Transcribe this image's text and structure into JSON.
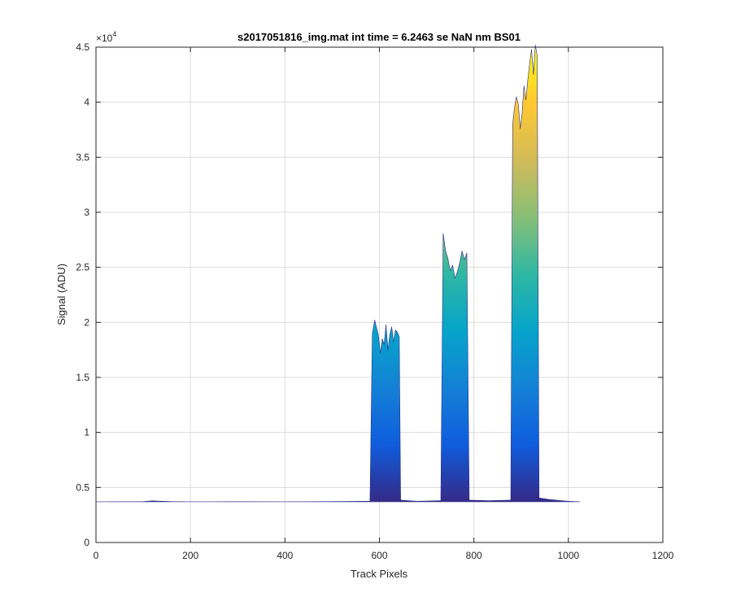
{
  "chart_data": {
    "type": "area",
    "title": "s2017051816_img.mat int time = 6.2463 se  NaN nm BS01",
    "xlabel": "Track Pixels",
    "ylabel": "Signal (ADU)",
    "xlim": [
      0,
      1200
    ],
    "ylim": [
      0,
      45000
    ],
    "xticks": [
      0,
      200,
      400,
      600,
      800,
      1000,
      1200
    ],
    "xtick_labels": [
      "0",
      "200",
      "400",
      "600",
      "800",
      "1000",
      "1200"
    ],
    "yticks": [
      0,
      5000,
      10000,
      15000,
      20000,
      25000,
      30000,
      35000,
      40000,
      45000
    ],
    "ytick_labels": [
      "0",
      "0.5",
      "1",
      "1.5",
      "2",
      "2.5",
      "3",
      "3.5",
      "4",
      "4.5"
    ],
    "y_exponent_label": "×10",
    "y_exponent_power": "4",
    "grid": true,
    "colormap": [
      "#352a87",
      "#0f5cdd",
      "#1481d6",
      "#06a4ca",
      "#2eb7a4",
      "#87bf77",
      "#d1bb59",
      "#fec832",
      "#f9fb0e"
    ],
    "baseline": 3700,
    "series": [
      {
        "x": [
          0,
          100,
          120,
          140,
          160,
          200,
          300,
          400,
          500,
          580
        ],
        "y": [
          3700,
          3720,
          3780,
          3750,
          3720,
          3700,
          3710,
          3700,
          3720,
          3750
        ]
      },
      {
        "x": [
          580,
          585,
          590,
          594,
          598,
          602,
          606,
          610,
          614,
          618,
          622,
          626,
          630,
          634,
          638,
          642,
          645
        ],
        "y": [
          3800,
          19000,
          20200,
          19500,
          18800,
          17200,
          18500,
          18000,
          19800,
          17500,
          18900,
          19600,
          18200,
          19300,
          19100,
          18700,
          3900
        ]
      },
      {
        "x": [
          645,
          680,
          730
        ],
        "y": [
          3850,
          3750,
          3800
        ]
      },
      {
        "x": [
          730,
          735,
          740,
          745,
          750,
          755,
          760,
          765,
          770,
          775,
          780,
          785,
          790
        ],
        "y": [
          3900,
          28100,
          26500,
          25800,
          24700,
          25200,
          24000,
          24600,
          25400,
          26500,
          25700,
          26300,
          4000
        ]
      },
      {
        "x": [
          790,
          830,
          878
        ],
        "y": [
          3850,
          3800,
          3850
        ]
      },
      {
        "x": [
          878,
          882,
          886,
          890,
          894,
          898,
          902,
          906,
          910,
          914,
          918,
          922,
          926,
          930,
          934,
          938
        ],
        "y": [
          4000,
          38000,
          39500,
          40500,
          39800,
          37600,
          39000,
          41500,
          40200,
          42000,
          43500,
          44800,
          42500,
          45200,
          44200,
          4100
        ]
      },
      {
        "x": [
          938,
          960,
          1000,
          1024
        ],
        "y": [
          4050,
          3900,
          3750,
          3700
        ]
      }
    ]
  }
}
